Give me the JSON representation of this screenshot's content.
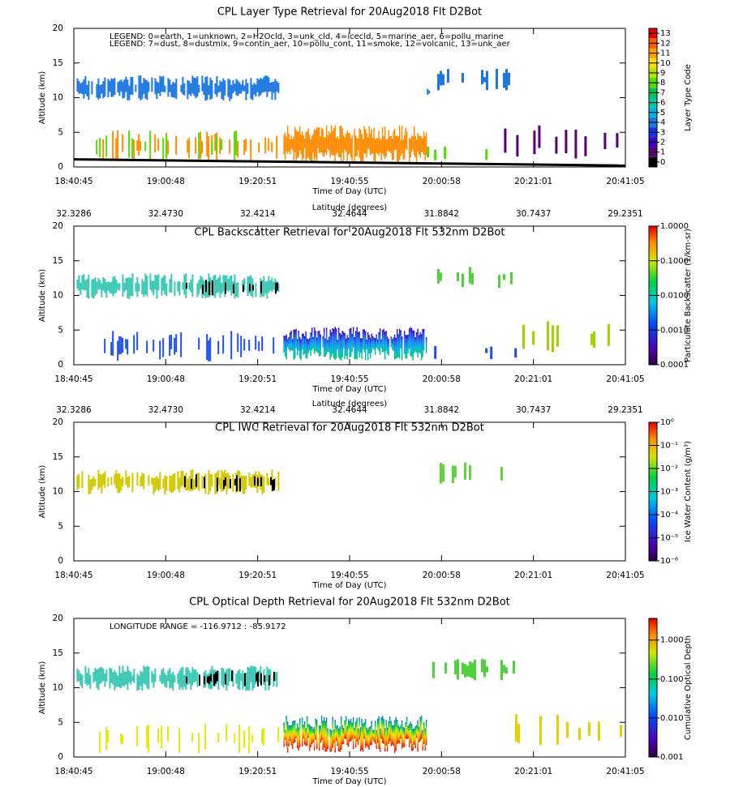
{
  "chart_data": [
    {
      "type": "curtain",
      "title": "CPL Layer Type Retrieval for 20Aug2018 Flt D2Bot",
      "annotations": [
        "LEGEND: 0=earth, 1=unknown, 2=H2Ocld, 3=unk_cld, 4=icecld, 5=marine_aer, 6=pollu_marine",
        "LEGEND: 7=dust, 8=dustmix, 9=contin_aer, 10=pollu_cont, 11=smoke, 12=volcanic, 13=unk_aer"
      ],
      "categories": [
        "18:40:45",
        "19:00:48",
        "19:20:51",
        "19:40:55",
        "20:00:58",
        "20:21:01",
        "20:41:05"
      ],
      "xlabel": "Time of Day (UTC)",
      "ylabel": "Altitude (km)",
      "ylim": [
        0,
        20
      ],
      "yticks": [
        0,
        5,
        10,
        15,
        20
      ],
      "colorbar": {
        "label": "Layer Type Code",
        "lim": [
          -0.5,
          13.5
        ],
        "ticks": [
          0,
          1,
          2,
          3,
          4,
          5,
          6,
          7,
          8,
          9,
          10,
          11,
          12,
          13
        ],
        "colors": [
          "#000000",
          "#5a007a",
          "#3c00c8",
          "#1432e6",
          "#1e78e0",
          "#00b4e6",
          "#00c8a0",
          "#00c850",
          "#50dc00",
          "#b4e600",
          "#ffdc00",
          "#ffa000",
          "#ff5a00",
          "#e60000"
        ]
      }
    },
    {
      "type": "curtain",
      "title": "CPL Backscatter Retrieval for 20Aug2018 Flt 532nm D2Bot",
      "top_axis": {
        "label": "Latitude (degrees)",
        "categories": [
          "32.3286",
          "32.4730",
          "32.4214",
          "32.4644",
          "31.8842",
          "30.7437",
          "29.2351"
        ]
      },
      "categories": [
        "18:40:45",
        "19:00:48",
        "19:20:51",
        "19:40:55",
        "20:00:58",
        "20:21:01",
        "20:41:05"
      ],
      "xlabel": "Time of Day (UTC)",
      "ylabel": "Altitude (km)",
      "ylim": [
        0,
        20
      ],
      "yticks": [
        0,
        5,
        10,
        15,
        20
      ],
      "colorbar": {
        "label": "Particulate Backscatter (1/km-sr)",
        "log": true,
        "lim": [
          0.0001,
          1
        ],
        "ticks": [
          {
            "value": 0.0001,
            "label": "0.0001"
          },
          {
            "value": 0.001,
            "label": "0.0010"
          },
          {
            "value": 0.01,
            "label": "0.0100"
          },
          {
            "value": 0.1,
            "label": "0.1000"
          },
          {
            "value": 1,
            "label": "1.0000"
          }
        ]
      }
    },
    {
      "type": "curtain",
      "title": "CPL IWC Retrieval for 20Aug2018 Flt 532nm D2Bot",
      "top_axis": {
        "label": "Latitude (degrees)",
        "categories": [
          "32.3286",
          "32.4730",
          "32.4214",
          "32.4644",
          "31.8842",
          "30.7437",
          "29.2351"
        ]
      },
      "categories": [
        "18:40:45",
        "19:00:48",
        "19:20:51",
        "19:40:55",
        "20:00:58",
        "20:21:01",
        "20:41:05"
      ],
      "xlabel": "Time of Day (UTC)",
      "ylabel": "Altitude (km)",
      "ylim": [
        0,
        20
      ],
      "yticks": [
        0,
        5,
        10,
        15,
        20
      ],
      "colorbar": {
        "label": "Ice Water Content (g/m³)",
        "log": true,
        "lim": [
          1e-06,
          1
        ],
        "ticks": [
          {
            "value": 1,
            "label": "10⁰"
          },
          {
            "value": 0.1,
            "label": "10⁻¹"
          },
          {
            "value": 0.01,
            "label": "10⁻²"
          },
          {
            "value": 0.001,
            "label": "10⁻³"
          },
          {
            "value": 0.0001,
            "label": "10⁻⁴"
          },
          {
            "value": 1e-05,
            "label": "10⁻⁵"
          },
          {
            "value": 1e-06,
            "label": "10⁻⁶"
          }
        ]
      }
    },
    {
      "type": "curtain",
      "title": "CPL Optical Depth Retrieval for 20Aug2018 Flt 532nm D2Bot",
      "annotations": [
        "LONGITUDE RANGE =  -116.9712 :  -85.9172"
      ],
      "categories": [
        "18:40:45",
        "19:00:48",
        "19:20:51",
        "19:40:55",
        "20:00:58",
        "20:21:01",
        "20:41:05"
      ],
      "xlabel": "Time of Day (UTC)",
      "ylabel": "Altitude (km)",
      "ylim": [
        0,
        20
      ],
      "yticks": [
        0,
        5,
        10,
        15,
        20
      ],
      "colorbar": {
        "label": "Cumulative Optical Depth",
        "log": true,
        "lim": [
          0.001,
          3.6
        ],
        "ticks": [
          {
            "value": 0.001,
            "label": "0.001"
          },
          {
            "value": 0.01,
            "label": "0.010"
          },
          {
            "value": 0.1,
            "label": "0.100"
          },
          {
            "value": 1,
            "label": "1.000"
          }
        ]
      }
    }
  ]
}
